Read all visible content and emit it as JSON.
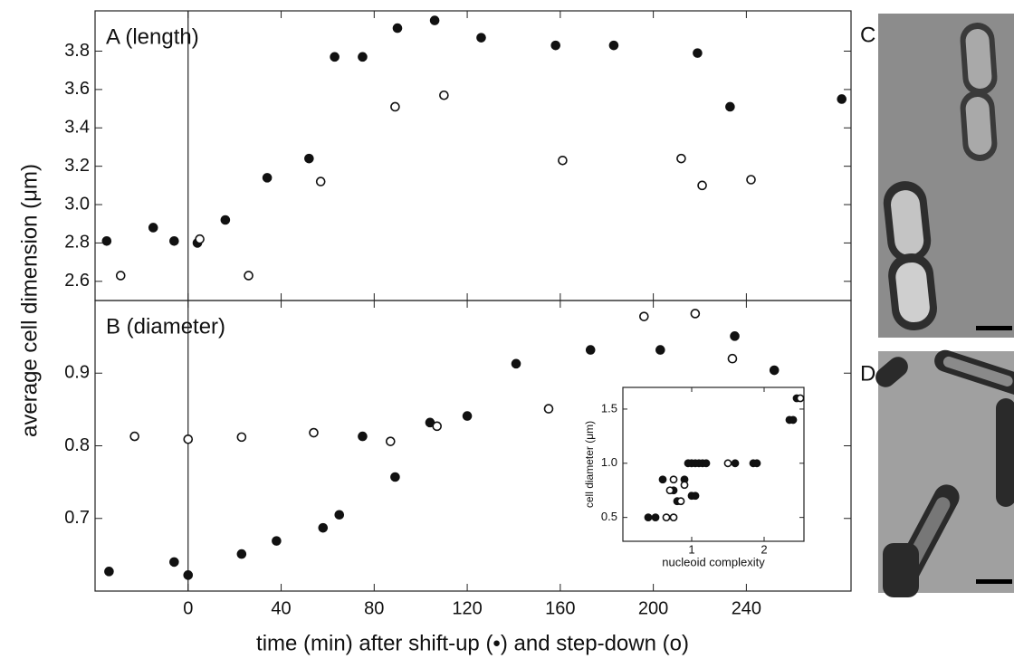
{
  "chart_data": [
    {
      "type": "scatter",
      "title": "A (length)",
      "y_label": "average cell dimension (μm)",
      "xlim": [
        -40,
        285
      ],
      "ylim": [
        2.5,
        4.01
      ],
      "yticks": [
        2.6,
        2.8,
        {
          "value": 3,
          "label": "3.0"
        },
        3.2,
        3.4,
        3.6,
        3.8
      ],
      "series": [
        {
          "marker": "filled",
          "color": "#111111",
          "x": [
            -35,
            -15,
            -6,
            4,
            16,
            34,
            52,
            63,
            75,
            90,
            106,
            126,
            158,
            183,
            219,
            233,
            281
          ],
          "values": [
            2.81,
            2.88,
            2.81,
            2.8,
            2.92,
            3.14,
            3.24,
            3.77,
            3.77,
            3.92,
            3.96,
            3.87,
            3.83,
            3.83,
            3.79,
            3.51,
            3.55
          ]
        },
        {
          "marker": "open",
          "color": "#111111",
          "x": [
            -29,
            5,
            26,
            57,
            89,
            110,
            161,
            212,
            221,
            242
          ],
          "values": [
            2.63,
            2.82,
            2.63,
            3.12,
            3.51,
            3.57,
            3.23,
            3.24,
            3.1,
            3.13
          ]
        }
      ]
    },
    {
      "type": "scatter",
      "title": "B (diameter)",
      "x_label": "time (min) after shift-up (•) and step-down (o)",
      "xlim": [
        -40,
        285
      ],
      "ylim": [
        0.6,
        1.0
      ],
      "xticks": [
        0,
        40,
        80,
        120,
        160,
        200,
        240
      ],
      "yticks": [
        0.7,
        0.8,
        0.9
      ],
      "series": [
        {
          "marker": "filled",
          "color": "#111111",
          "x": [
            -34,
            -6,
            0,
            23,
            38,
            58,
            65,
            75,
            89,
            104,
            120,
            141,
            173,
            203,
            235,
            252
          ],
          "values": [
            0.627,
            0.64,
            0.622,
            0.651,
            0.669,
            0.687,
            0.705,
            0.813,
            0.757,
            0.832,
            0.841,
            0.913,
            0.932,
            0.932,
            0.951,
            0.904
          ]
        },
        {
          "marker": "open",
          "color": "#111111",
          "x": [
            -23,
            0,
            23,
            54,
            87,
            107,
            155,
            196,
            218,
            234
          ],
          "values": [
            0.813,
            0.809,
            0.812,
            0.818,
            0.806,
            0.827,
            0.851,
            0.978,
            0.982,
            0.92
          ]
        }
      ]
    },
    {
      "type": "scatter",
      "x_label": "nucleoid complexity",
      "y_label": "cell diameter (μm)",
      "xlim": [
        0.05,
        2.55
      ],
      "ylim": [
        0.28,
        1.7
      ],
      "xticks": [
        1,
        2
      ],
      "yticks": [
        0.5,
        {
          "value": 1,
          "label": "1.0"
        },
        1.5
      ],
      "series": [
        {
          "marker": "filled",
          "color": "#111111",
          "x": [
            0.4,
            0.5,
            0.6,
            0.75,
            0.8,
            0.9,
            1.0,
            1.05,
            0.95,
            1.0,
            1.05,
            1.1,
            1.15,
            1.2,
            1.6,
            1.85,
            1.9,
            2.35,
            2.4,
            2.45
          ],
          "values": [
            0.5,
            0.5,
            0.85,
            0.75,
            0.65,
            0.85,
            0.7,
            0.7,
            1.0,
            1.0,
            1.0,
            1.0,
            1.0,
            1.0,
            1.0,
            1.0,
            1.0,
            1.4,
            1.4,
            1.6
          ]
        },
        {
          "marker": "open",
          "color": "#111111",
          "x": [
            0.65,
            0.75,
            0.7,
            0.75,
            0.85,
            0.9,
            1.5,
            2.5
          ],
          "values": [
            0.5,
            0.5,
            0.75,
            0.85,
            0.65,
            0.8,
            1.0,
            1.6
          ]
        }
      ]
    }
  ],
  "photo_labels": [
    "C",
    "D"
  ]
}
